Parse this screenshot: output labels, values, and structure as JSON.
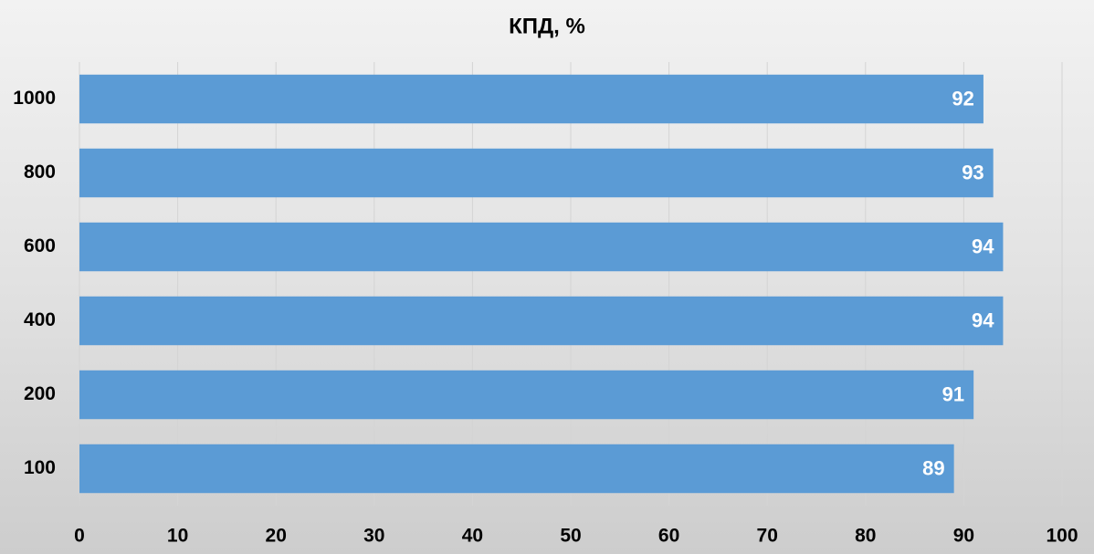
{
  "chart_data": {
    "type": "bar",
    "orientation": "horizontal",
    "title": "КПД, %",
    "categories": [
      "1000",
      "800",
      "600",
      "400",
      "200",
      "100"
    ],
    "values": [
      92,
      93,
      94,
      94,
      91,
      89
    ],
    "color": "#5b9bd5",
    "xlim": [
      0,
      100
    ],
    "xticks": [
      0,
      10,
      20,
      30,
      40,
      50,
      60,
      70,
      80,
      90,
      100
    ],
    "grid": true
  }
}
